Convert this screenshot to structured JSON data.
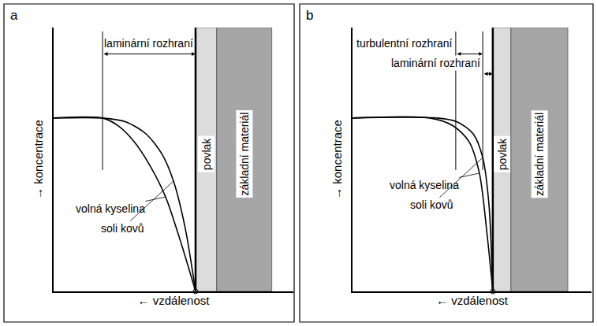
{
  "chart_data": [
    {
      "type": "line",
      "title": "a",
      "x_label": "← vzdálenost",
      "y_label": "→ koncentrace",
      "xlim": [
        0,
        100
      ],
      "ylim": [
        0,
        100
      ],
      "tick_labels": false,
      "series": [
        {
          "name": "volná kyselina",
          "color": "#000000",
          "x": [
            0,
            20.4,
            27,
            33.6,
            40.1,
            46.7,
            53.3,
            59.2
          ],
          "values": [
            65.7,
            65.7,
            62.7,
            56.7,
            47.8,
            35.8,
            17.9,
            0
          ]
        },
        {
          "name": "soli kovů",
          "color": "#000000",
          "x": [
            0,
            20.4,
            30.3,
            38.5,
            45.1,
            50,
            54.9,
            59.2
          ],
          "values": [
            65.7,
            65.7,
            64.2,
            59.7,
            52.2,
            41.8,
            23.9,
            0
          ]
        }
      ],
      "boundary_layers": [
        {
          "label": "laminární rozhraní",
          "from": 20.4,
          "to": 59.2
        }
      ],
      "regions": [
        {
          "label": "povlak",
          "from": 59.2,
          "to": 68,
          "color": "#dcdcdc"
        },
        {
          "label": "základní materiál",
          "from": 68,
          "to": 91,
          "color": "#a6a6a6"
        }
      ]
    },
    {
      "type": "line",
      "title": "b",
      "x_label": "← vzdálenost",
      "y_label": "→ koncentrace",
      "xlim": [
        0,
        100
      ],
      "ylim": [
        0,
        100
      ],
      "tick_labels": false,
      "series": [
        {
          "name": "volná kyselina",
          "color": "#000000",
          "x": [
            0,
            32.3,
            42.2,
            48.8,
            53.1,
            56.4,
            58.7
          ],
          "values": [
            65.7,
            65.7,
            62.7,
            56.7,
            44.8,
            20.9,
            0
          ]
        },
        {
          "name": "soli kovů",
          "color": "#000000",
          "x": [
            0,
            35.6,
            43.9,
            50.5,
            54.5,
            57.1,
            58.7
          ],
          "values": [
            65.7,
            65.7,
            64.2,
            59.7,
            50.7,
            32.8,
            0
          ]
        }
      ],
      "boundary_layers": [
        {
          "label": "turbulentní rozhraní",
          "from": 43.2,
          "to": 54.5
        },
        {
          "label": "laminární rozhraní",
          "from": 54.5,
          "to": 58.7
        }
      ],
      "regions": [
        {
          "label": "povlak",
          "from": 58.7,
          "to": 66.3,
          "color": "#dcdcdc"
        },
        {
          "label": "základní materiál",
          "from": 66.3,
          "to": 90.1,
          "color": "#a6a6a6"
        }
      ]
    }
  ]
}
